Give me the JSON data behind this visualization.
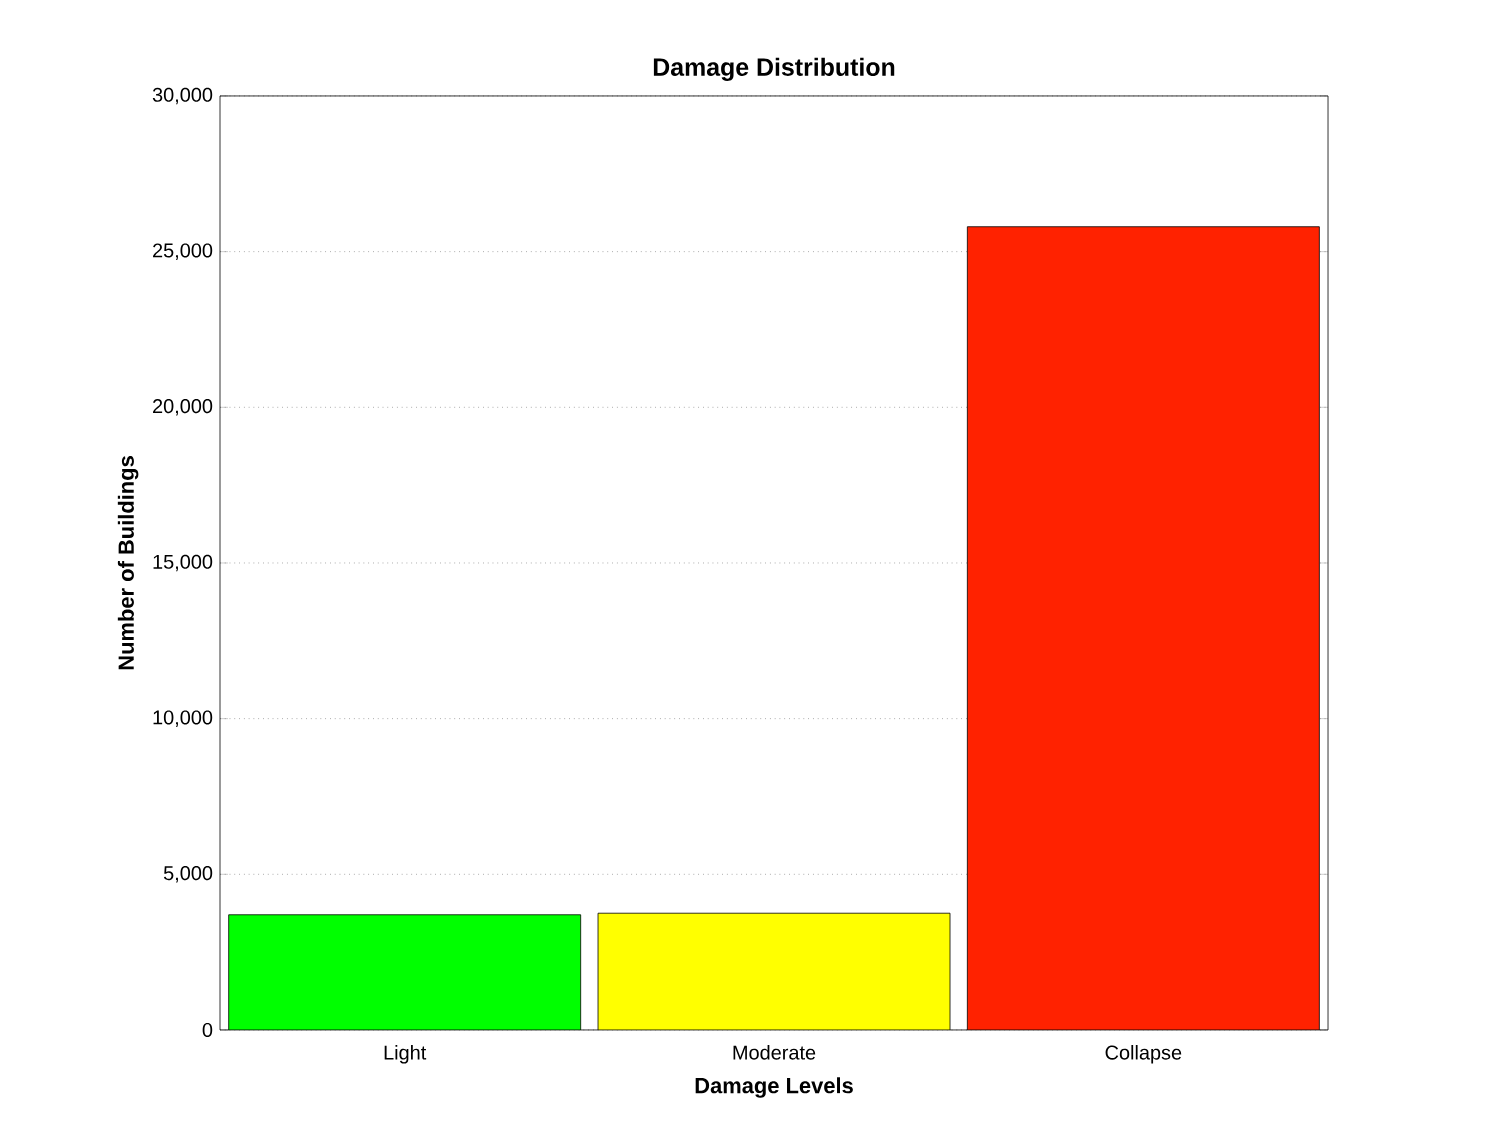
{
  "chart_data": {
    "type": "bar",
    "title": "Damage Distribution",
    "xlabel": "Damage Levels",
    "ylabel": "Number of Buildings",
    "categories": [
      "Light",
      "Moderate",
      "Collapse"
    ],
    "values": [
      3700,
      3750,
      25800
    ],
    "colors": [
      "#00ff00",
      "#ffff00",
      "#ff2200"
    ],
    "ylim": [
      0,
      30000
    ],
    "yticks": [
      {
        "value": 0,
        "label": "0"
      },
      {
        "value": 5000,
        "label": "5,000"
      },
      {
        "value": 10000,
        "label": "10,000"
      },
      {
        "value": 15000,
        "label": "15,000"
      },
      {
        "value": 20000,
        "label": "20,000"
      },
      {
        "value": 25000,
        "label": "25,000"
      },
      {
        "value": 30000,
        "label": "30,000"
      }
    ],
    "grid": "y"
  }
}
